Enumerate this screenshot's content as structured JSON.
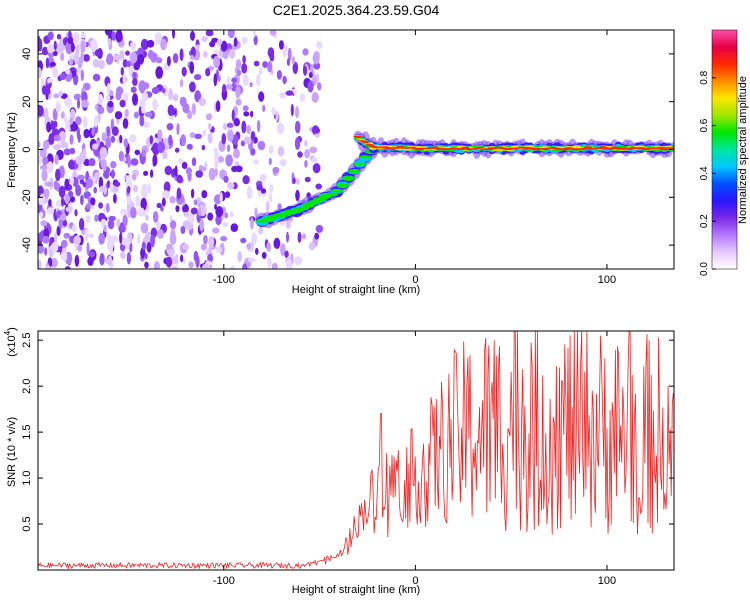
{
  "title": "C2E1.2025.364.23.59.G04",
  "chart_data": [
    {
      "type": "heatmap",
      "xlabel": "Height of straight line (km)",
      "ylabel": "Frequency (Hz)",
      "xlim": [
        -197,
        135
      ],
      "ylim": [
        -50,
        50
      ],
      "x_ticks": [
        -100,
        0,
        100
      ],
      "y_ticks": [
        -40,
        -20,
        0,
        20,
        40
      ],
      "colorbar": {
        "label": "Normalized spectral amplitude",
        "range": [
          0,
          1
        ],
        "ticks": [
          "0.0",
          "0.2",
          "0.4",
          "0.6",
          "0.8"
        ],
        "colors": [
          "#ffffff",
          "#e6c8ff",
          "#b478ff",
          "#7a28e6",
          "#2a14ff",
          "#0050ff",
          "#00c8ff",
          "#00e6a0",
          "#00e600",
          "#a0e600",
          "#ffe600",
          "#ff8c00",
          "#ff2800",
          "#e60046",
          "#ff50aa"
        ]
      },
      "features": [
        {
          "name": "noise-region",
          "x_range": [
            -197,
            -50
          ],
          "freq_range": [
            -50,
            50
          ]
        },
        {
          "name": "main-ridge",
          "points": [
            [
              -30,
              5
            ],
            [
              -22,
              1
            ],
            [
              0,
              0.5
            ],
            [
              50,
              0.5
            ],
            [
              100,
              0.5
            ],
            [
              135,
              0.5
            ]
          ]
        },
        {
          "name": "secondary-branch",
          "points": [
            [
              -80,
              -30
            ],
            [
              -60,
              -25
            ],
            [
              -40,
              -17
            ],
            [
              -30,
              -7
            ],
            [
              -22,
              0
            ]
          ]
        }
      ]
    },
    {
      "type": "line",
      "xlabel": "Height of straight line (km)",
      "ylabel": "SNR (10 * v/v)",
      "scale_label": "(x10",
      "scale_exponent": "4",
      "xlim": [
        -197,
        135
      ],
      "ylim": [
        0,
        2.6
      ],
      "x_ticks": [
        -100,
        0,
        100
      ],
      "y_ticks": [
        0.5,
        1.0,
        1.5,
        2.0,
        2.5
      ],
      "y_tick_labels": [
        "0.5",
        "1.0",
        "1.5",
        "2.0",
        "2.5"
      ],
      "color": "#ee2222",
      "trend": [
        {
          "x": -197,
          "y": 0.05
        },
        {
          "x": -60,
          "y": 0.05
        },
        {
          "x": -40,
          "y": 0.15
        },
        {
          "x": -20,
          "y": 0.9
        },
        {
          "x": 0,
          "y": 1.0
        },
        {
          "x": 20,
          "y": 1.4
        },
        {
          "x": 50,
          "y": 1.55
        },
        {
          "x": 100,
          "y": 1.45
        },
        {
          "x": 135,
          "y": 1.4
        }
      ],
      "peaks": [
        {
          "x": -18,
          "y": 1.7
        },
        {
          "x": 52,
          "y": 2.6
        },
        {
          "x": 112,
          "y": 2.6
        }
      ]
    }
  ]
}
